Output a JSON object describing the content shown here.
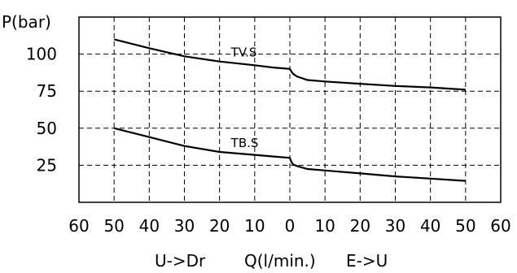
{
  "chart_data": {
    "type": "line",
    "title": "",
    "ylabel": "P(bar)",
    "xlabel_parts": [
      "U->Dr",
      "Q(l/min.)",
      "E->U"
    ],
    "x_tick_labels": [
      "60",
      "50",
      "40",
      "30",
      "20",
      "10",
      "0",
      "10",
      "20",
      "30",
      "40",
      "50",
      "60"
    ],
    "y_tick_labels": [
      "100",
      "75",
      "50",
      "25"
    ],
    "y_ticks": [
      100,
      75,
      50,
      25
    ],
    "xlim": [
      -60,
      60
    ],
    "ylim": [
      0,
      125
    ],
    "grid": true,
    "series": [
      {
        "name": "TV.S",
        "x": [
          -50,
          -40,
          -30,
          -20,
          -10,
          -5,
          0,
          0.5,
          1,
          2,
          5,
          10,
          20,
          30,
          40,
          50
        ],
        "y": [
          110,
          104,
          98.5,
          95,
          92.5,
          91,
          90,
          88,
          86.5,
          85,
          82.5,
          81.5,
          80,
          78.5,
          77.5,
          76
        ]
      },
      {
        "name": "TB.S",
        "x": [
          -50,
          -40,
          -30,
          -20,
          -10,
          -5,
          0,
          0.5,
          1,
          2,
          5,
          10,
          20,
          30,
          40,
          50
        ],
        "y": [
          50,
          44,
          38,
          34,
          32,
          31,
          30,
          27,
          25.5,
          24.5,
          22.5,
          21.5,
          19.5,
          17.5,
          16,
          14.5
        ]
      }
    ]
  }
}
